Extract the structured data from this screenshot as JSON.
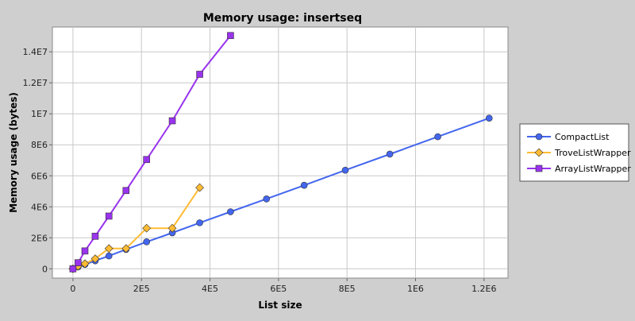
{
  "chart_data": {
    "type": "line",
    "title": "Memory usage: insertseq",
    "xlabel": "List size",
    "ylabel": "Memory usage (bytes)",
    "xlim": [
      -60000,
      1270000
    ],
    "ylim": [
      -600000,
      15600000
    ],
    "x_ticks": [
      {
        "value": 0,
        "label": "0"
      },
      {
        "value": 200000,
        "label": "2E5"
      },
      {
        "value": 400000,
        "label": "4E5"
      },
      {
        "value": 600000,
        "label": "6E5"
      },
      {
        "value": 800000,
        "label": "8E5"
      },
      {
        "value": 1000000,
        "label": "1E6"
      },
      {
        "value": 1200000,
        "label": "1.2E6"
      }
    ],
    "y_ticks": [
      {
        "value": 0,
        "label": "0"
      },
      {
        "value": 2000000,
        "label": "2E6"
      },
      {
        "value": 4000000,
        "label": "4E6"
      },
      {
        "value": 6000000,
        "label": "6E6"
      },
      {
        "value": 8000000,
        "label": "8E6"
      },
      {
        "value": 10000000,
        "label": "1E7"
      },
      {
        "value": 12000000,
        "label": "1.2E7"
      },
      {
        "value": 14000000,
        "label": "1.4E7"
      }
    ],
    "grid": true,
    "legend_position": "right",
    "series": [
      {
        "name": "CompactList",
        "color": "#4466ee",
        "marker": "circle",
        "points": [
          [
            0,
            0
          ],
          [
            15000,
            120000
          ],
          [
            35000,
            280000
          ],
          [
            65000,
            520000
          ],
          [
            105000,
            830000
          ],
          [
            155000,
            1250000
          ],
          [
            215000,
            1740000
          ],
          [
            290000,
            2320000
          ],
          [
            370000,
            2970000
          ],
          [
            460000,
            3680000
          ],
          [
            565000,
            4510000
          ],
          [
            675000,
            5390000
          ],
          [
            795000,
            6360000
          ],
          [
            925000,
            7400000
          ],
          [
            1065000,
            8520000
          ],
          [
            1215000,
            9720000
          ]
        ]
      },
      {
        "name": "TroveListWrapper",
        "color": "#ffbb33",
        "marker": "diamond",
        "points": [
          [
            0,
            0
          ],
          [
            15000,
            170000
          ],
          [
            35000,
            330000
          ],
          [
            65000,
            650000
          ],
          [
            105000,
            1310000
          ],
          [
            155000,
            1310000
          ],
          [
            215000,
            2620000
          ],
          [
            290000,
            2620000
          ],
          [
            370000,
            5240000
          ]
        ]
      },
      {
        "name": "ArrayListWrapper",
        "color": "#9933ee",
        "marker": "square",
        "points": [
          [
            0,
            0
          ],
          [
            15000,
            390000
          ],
          [
            35000,
            1150000
          ],
          [
            65000,
            2100000
          ],
          [
            105000,
            3400000
          ],
          [
            155000,
            5050000
          ],
          [
            215000,
            7050000
          ],
          [
            290000,
            9550000
          ],
          [
            370000,
            12550000
          ],
          [
            460000,
            15050000
          ]
        ]
      }
    ]
  }
}
